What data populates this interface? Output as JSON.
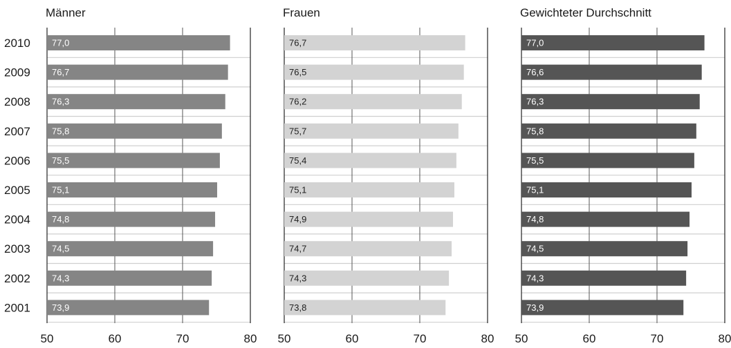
{
  "chart_data": {
    "type": "bar",
    "orientation": "horizontal",
    "categories": [
      "2010",
      "2009",
      "2008",
      "2007",
      "2006",
      "2005",
      "2004",
      "2003",
      "2002",
      "2001"
    ],
    "xlim": [
      50,
      80
    ],
    "x_ticks": [
      "50",
      "60",
      "70",
      "80"
    ],
    "grid": true,
    "panels": [
      {
        "title": "Männer",
        "color": "#858585",
        "label_color": "#ffffff",
        "values": [
          77.0,
          76.7,
          76.3,
          75.8,
          75.5,
          75.1,
          74.8,
          74.5,
          74.3,
          73.9
        ],
        "value_labels": [
          "77,0",
          "76,7",
          "76,3",
          "75,8",
          "75,5",
          "75,1",
          "74,8",
          "74,5",
          "74,3",
          "73,9"
        ]
      },
      {
        "title": "Frauen",
        "color": "#d3d3d3",
        "label_color": "#222222",
        "values": [
          76.7,
          76.5,
          76.2,
          75.7,
          75.4,
          75.1,
          74.9,
          74.7,
          74.3,
          73.8
        ],
        "value_labels": [
          "76,7",
          "76,5",
          "76,2",
          "75,7",
          "75,4",
          "75,1",
          "74,9",
          "74,7",
          "74,3",
          "73,8"
        ]
      },
      {
        "title": "Gewichteter Durchschnitt",
        "color": "#555555",
        "label_color": "#ffffff",
        "values": [
          77.0,
          76.6,
          76.3,
          75.8,
          75.5,
          75.1,
          74.8,
          74.5,
          74.3,
          73.9
        ],
        "value_labels": [
          "77,0",
          "76,6",
          "76,3",
          "75,8",
          "75,5",
          "75,1",
          "74,8",
          "74,5",
          "74,3",
          "73,9"
        ]
      }
    ]
  }
}
